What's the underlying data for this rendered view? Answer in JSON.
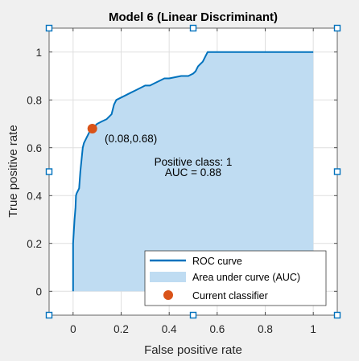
{
  "chart_data": {
    "type": "line",
    "title": "Model 6 (Linear Discriminant)",
    "xlabel": "False positive rate",
    "ylabel": "True positive rate",
    "xlim": [
      -0.1,
      1.1
    ],
    "ylim": [
      -0.1,
      1.1
    ],
    "xticks": [
      0,
      0.2,
      0.4,
      0.6,
      0.8,
      1
    ],
    "yticks": [
      0,
      0.2,
      0.4,
      0.6,
      0.8,
      1
    ],
    "xtick_labels": [
      "0",
      "0.2",
      "0.4",
      "0.6",
      "0.8",
      "1"
    ],
    "ytick_labels": [
      "0",
      "0.2",
      "0.4",
      "0.6",
      "0.8",
      "1"
    ],
    "grid": true,
    "legend_position": "bottom-right",
    "colors": {
      "roc": "#0072bd",
      "auc_fill": "#bfdcf2",
      "point": "#d95319",
      "handles": "#0072bd"
    },
    "series": [
      {
        "name": "ROC curve",
        "x": [
          0,
          0,
          0.003,
          0.006,
          0.01,
          0.012,
          0.015,
          0.02,
          0.025,
          0.03,
          0.035,
          0.04,
          0.045,
          0.05,
          0.055,
          0.06,
          0.065,
          0.07,
          0.075,
          0.08,
          0.09,
          0.1,
          0.12,
          0.14,
          0.16,
          0.17,
          0.18,
          0.2,
          0.22,
          0.24,
          0.26,
          0.28,
          0.3,
          0.32,
          0.34,
          0.36,
          0.38,
          0.4,
          0.45,
          0.48,
          0.5,
          0.51,
          0.52,
          0.53,
          0.54,
          0.55,
          0.56,
          1
        ],
        "y": [
          0,
          0.2,
          0.25,
          0.3,
          0.35,
          0.4,
          0.41,
          0.42,
          0.43,
          0.5,
          0.55,
          0.6,
          0.62,
          0.63,
          0.64,
          0.65,
          0.66,
          0.67,
          0.675,
          0.68,
          0.69,
          0.7,
          0.71,
          0.72,
          0.74,
          0.78,
          0.8,
          0.81,
          0.82,
          0.83,
          0.84,
          0.85,
          0.86,
          0.86,
          0.87,
          0.88,
          0.89,
          0.89,
          0.9,
          0.9,
          0.91,
          0.92,
          0.94,
          0.95,
          0.96,
          0.98,
          1,
          1
        ]
      }
    ],
    "auc_fill_label": "Area under curve (AUC)",
    "current_classifier": {
      "label": "Current classifier",
      "x": 0.08,
      "y": 0.68
    },
    "annotation_point": "(0.08,0.68)",
    "annotation_class": "Positive class: 1",
    "annotation_auc": "AUC = 0.88"
  }
}
